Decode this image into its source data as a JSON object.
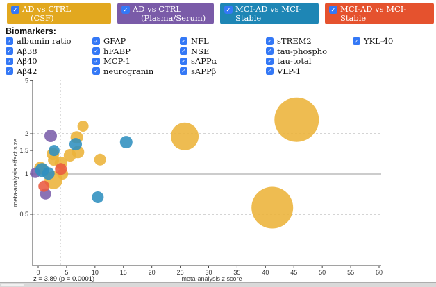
{
  "comparison_buttons": [
    {
      "line1": "AD vs CTRL",
      "line2": "(CSF)",
      "color": "#E2A81F",
      "checked": true
    },
    {
      "line1": "AD vs CTRL",
      "line2": "(Plasma/Serum)",
      "color": "#7A5BA8",
      "checked": true
    },
    {
      "line1": "MCI-AD vs MCI-Stable",
      "line2": "(CSF)",
      "color": "#1E86B5",
      "checked": true
    },
    {
      "line1": "MCI-AD vs MCI-Stable",
      "line2": "(Plasma/Serum)",
      "color": "#E5522E",
      "checked": true
    }
  ],
  "checkbox_color": "#3478F6",
  "biomarkers": {
    "title": "Biomarkers:",
    "all_checked": true,
    "columns": [
      [
        "albumin ratio",
        "Aβ38",
        "Aβ40",
        "Aβ42"
      ],
      [
        "GFAP",
        "hFABP",
        "MCP-1",
        "neurogranin"
      ],
      [
        "NFL",
        "NSE",
        "sAPPα",
        "sAPPβ"
      ],
      [
        "sTREM2",
        "tau-phospho",
        "tau-total",
        "VLP-1"
      ],
      [
        "YKL-40"
      ]
    ]
  },
  "chart_data": {
    "type": "scatter",
    "xlabel": "meta-analysis z score",
    "ylabel": "meta-analysis effect size",
    "x_ticks": [
      0,
      5,
      10,
      15,
      20,
      25,
      30,
      35,
      40,
      45,
      50,
      55,
      60
    ],
    "y_ticks": [
      0.5,
      1,
      1.5,
      2,
      5
    ],
    "y_scale": "log",
    "xlim": [
      -1,
      60.5
    ],
    "ylim": [
      0.21,
      5.1
    ],
    "grid": "reference lines only",
    "reference_lines_dashed_y": [
      0.5,
      2
    ],
    "reference_line_solid_y": 1,
    "threshold_z": 3.89,
    "threshold_annotation": "z = 3.89 (p = 0.0001)",
    "series": [
      {
        "name": "AD vs CTRL (CSF)",
        "color": "#ECB339",
        "points": [
          {
            "z": 45.5,
            "effect_size": 2.55,
            "r": 32
          },
          {
            "z": 41.2,
            "effect_size": 0.56,
            "r": 30
          },
          {
            "z": 25.8,
            "effect_size": 1.91,
            "r": 20
          },
          {
            "z": 10.9,
            "effect_size": 1.28,
            "r": 8.5
          },
          {
            "z": 7.9,
            "effect_size": 2.28,
            "r": 8
          },
          {
            "z": 6.8,
            "effect_size": 1.88,
            "r": 9
          },
          {
            "z": 7.0,
            "effect_size": 1.46,
            "r": 9
          },
          {
            "z": 5.6,
            "effect_size": 1.38,
            "r": 9
          },
          {
            "z": 4.0,
            "effect_size": 1.21,
            "r": 9
          },
          {
            "z": 2.6,
            "effect_size": 1.41,
            "r": 9
          },
          {
            "z": 2.7,
            "effect_size": 1.27,
            "r": 8
          },
          {
            "z": 2.7,
            "effect_size": 0.9,
            "r": 13
          },
          {
            "z": 0.4,
            "effect_size": 1.11,
            "r": 9
          },
          {
            "z": 4.3,
            "effect_size": 1.0,
            "r": 8
          }
        ]
      },
      {
        "name": "AD vs CTRL (Plasma/Serum)",
        "color": "#7B5FAB",
        "points": [
          {
            "z": 2.2,
            "effect_size": 1.93,
            "r": 9
          },
          {
            "z": -0.5,
            "effect_size": 1.02,
            "r": 7.5
          },
          {
            "z": 1.3,
            "effect_size": 0.71,
            "r": 8
          }
        ]
      },
      {
        "name": "MCI-AD vs MCI-Stable (CSF)",
        "color": "#2F8FBF",
        "points": [
          {
            "z": 15.5,
            "effect_size": 1.73,
            "r": 9
          },
          {
            "z": 10.5,
            "effect_size": 0.67,
            "r": 8.5
          },
          {
            "z": 6.6,
            "effect_size": 1.67,
            "r": 9
          },
          {
            "z": 2.8,
            "effect_size": 1.5,
            "r": 8
          },
          {
            "z": 0.7,
            "effect_size": 1.07,
            "r": 10
          },
          {
            "z": 1.8,
            "effect_size": 1.01,
            "r": 9
          }
        ]
      },
      {
        "name": "MCI-AD vs MCI-Stable (Plasma/Serum)",
        "color": "#EB5A40",
        "points": [
          {
            "z": 4.0,
            "effect_size": 1.09,
            "r": 8.5
          },
          {
            "z": 1.0,
            "effect_size": 0.81,
            "r": 8
          }
        ]
      }
    ]
  }
}
